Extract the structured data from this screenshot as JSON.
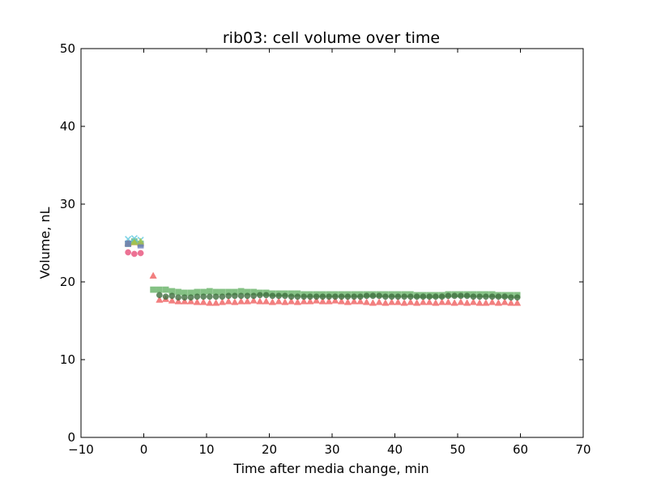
{
  "chart_data": {
    "type": "scatter",
    "title": "rib03: cell volume over time",
    "xlabel": "Time after media change, min",
    "ylabel": "Volume, nL",
    "xlim": [
      -10,
      70
    ],
    "ylim": [
      0,
      50
    ],
    "xticks": [
      -10,
      0,
      10,
      20,
      30,
      40,
      50,
      60,
      70
    ],
    "yticks": [
      0,
      10,
      20,
      30,
      40,
      50
    ],
    "grid": false,
    "legend": "none",
    "series": [
      {
        "marker": "triangle",
        "color": "#f06060",
        "x": [
          -2.5,
          -1.5,
          -0.5,
          1.5,
          2.5,
          3.5,
          4.5,
          5.5,
          6.5,
          7.5,
          8.5,
          9.5,
          10.5,
          11.5,
          12.5,
          13.5,
          14.5,
          15.5,
          16.5,
          17.5,
          18.5,
          19.5,
          20.5,
          21.5,
          22.5,
          23.5,
          24.5,
          25.5,
          26.5,
          27.5,
          28.5,
          29.5,
          30.5,
          31.5,
          32.5,
          33.5,
          34.5,
          35.5,
          36.5,
          37.5,
          38.5,
          39.5,
          40.5,
          41.5,
          42.5,
          43.5,
          44.5,
          45.5,
          46.5,
          47.5,
          48.5,
          49.5,
          50.5,
          51.5,
          52.5,
          53.5,
          54.5,
          55.5,
          56.5,
          57.5,
          58.5,
          59.5
        ],
        "y": [
          25.0,
          25.1,
          25.0,
          20.8,
          17.7,
          17.8,
          17.6,
          17.5,
          17.5,
          17.5,
          17.4,
          17.4,
          17.3,
          17.3,
          17.4,
          17.5,
          17.4,
          17.5,
          17.5,
          17.6,
          17.5,
          17.5,
          17.4,
          17.5,
          17.4,
          17.5,
          17.4,
          17.5,
          17.5,
          17.6,
          17.5,
          17.5,
          17.6,
          17.5,
          17.4,
          17.5,
          17.5,
          17.4,
          17.3,
          17.4,
          17.3,
          17.4,
          17.4,
          17.3,
          17.4,
          17.3,
          17.4,
          17.4,
          17.3,
          17.4,
          17.4,
          17.3,
          17.4,
          17.3,
          17.4,
          17.3,
          17.3,
          17.4,
          17.3,
          17.4,
          17.3,
          17.3
        ]
      },
      {
        "marker": "square",
        "color": "#66b266",
        "x": [
          -2.5,
          -1.5,
          -0.5,
          1.5,
          2.5,
          3.5,
          4.5,
          5.5,
          6.5,
          7.5,
          8.5,
          9.5,
          10.5,
          11.5,
          12.5,
          13.5,
          14.5,
          15.5,
          16.5,
          17.5,
          18.5,
          19.5,
          20.5,
          21.5,
          22.5,
          23.5,
          24.5,
          25.5,
          26.5,
          27.5,
          28.5,
          29.5,
          30.5,
          31.5,
          32.5,
          33.5,
          34.5,
          35.5,
          36.5,
          37.5,
          38.5,
          39.5,
          40.5,
          41.5,
          42.5,
          43.5,
          44.5,
          45.5,
          46.5,
          47.5,
          48.5,
          49.5,
          50.5,
          51.5,
          52.5,
          53.5,
          54.5,
          55.5,
          56.5,
          57.5,
          58.5,
          59.5
        ],
        "y": [
          24.9,
          25.2,
          24.9,
          19.0,
          19.0,
          19.0,
          18.8,
          18.7,
          18.6,
          18.6,
          18.7,
          18.7,
          18.8,
          18.7,
          18.7,
          18.7,
          18.7,
          18.8,
          18.7,
          18.7,
          18.6,
          18.6,
          18.5,
          18.5,
          18.5,
          18.5,
          18.5,
          18.4,
          18.4,
          18.4,
          18.4,
          18.4,
          18.4,
          18.4,
          18.4,
          18.4,
          18.4,
          18.4,
          18.4,
          18.4,
          18.4,
          18.4,
          18.4,
          18.4,
          18.4,
          18.3,
          18.3,
          18.3,
          18.3,
          18.3,
          18.4,
          18.4,
          18.4,
          18.4,
          18.4,
          18.4,
          18.4,
          18.4,
          18.3,
          18.3,
          18.3,
          18.3
        ]
      },
      {
        "marker": "circle",
        "color": "#3f6f3f",
        "x": [
          2.5,
          3.5,
          4.5,
          5.5,
          6.5,
          7.5,
          8.5,
          9.5,
          10.5,
          11.5,
          12.5,
          13.5,
          14.5,
          15.5,
          16.5,
          17.5,
          18.5,
          19.5,
          20.5,
          21.5,
          22.5,
          23.5,
          24.5,
          25.5,
          26.5,
          27.5,
          28.5,
          29.5,
          30.5,
          31.5,
          32.5,
          33.5,
          34.5,
          35.5,
          36.5,
          37.5,
          38.5,
          39.5,
          40.5,
          41.5,
          42.5,
          43.5,
          44.5,
          45.5,
          46.5,
          47.5,
          48.5,
          49.5,
          50.5,
          51.5,
          52.5,
          53.5,
          54.5,
          55.5,
          56.5,
          57.5,
          58.5,
          59.5
        ],
        "y": [
          18.3,
          18.1,
          18.2,
          18.0,
          18.0,
          18.0,
          18.1,
          18.1,
          18.1,
          18.1,
          18.1,
          18.2,
          18.2,
          18.2,
          18.2,
          18.2,
          18.3,
          18.3,
          18.2,
          18.2,
          18.2,
          18.1,
          18.1,
          18.1,
          18.1,
          18.1,
          18.1,
          18.1,
          18.1,
          18.1,
          18.1,
          18.1,
          18.1,
          18.2,
          18.2,
          18.2,
          18.1,
          18.1,
          18.1,
          18.1,
          18.1,
          18.1,
          18.1,
          18.1,
          18.1,
          18.1,
          18.2,
          18.2,
          18.2,
          18.2,
          18.1,
          18.1,
          18.1,
          18.1,
          18.1,
          18.1,
          18.0,
          18.0
        ]
      },
      {
        "marker": "circle",
        "color": "#e8507a",
        "x": [
          -2.5,
          -1.5,
          -0.5
        ],
        "y": [
          23.8,
          23.6,
          23.7
        ]
      },
      {
        "marker": "x",
        "color": "#5dc8e0",
        "x": [
          -2.5,
          -1.5,
          -0.5
        ],
        "y": [
          25.5,
          25.6,
          25.4
        ]
      },
      {
        "marker": "square",
        "color": "#6f7fc0",
        "x": [
          -2.5,
          -0.5
        ],
        "y": [
          24.9,
          24.7
        ]
      },
      {
        "marker": "triangle",
        "color": "#a9c84a",
        "x": [
          -1.5,
          -0.5
        ],
        "y": [
          25.1,
          25.2
        ]
      }
    ]
  }
}
